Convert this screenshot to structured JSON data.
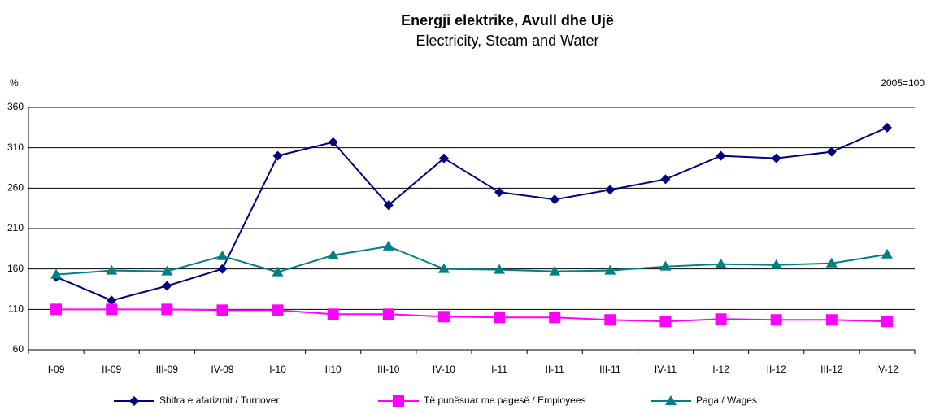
{
  "chart_data": {
    "type": "line",
    "title": "Energji elektrike, Avull dhe Ujë",
    "subtitle": "Electricity, Steam and Water",
    "y_label": "%",
    "note": "2005=100",
    "categories": [
      "I-09",
      "II-09",
      "III-09",
      "IV-09",
      "I-10",
      "II10",
      "III-10",
      "IV-10",
      "I-11",
      "II-11",
      "III-11",
      "IV-11",
      "I-12",
      "II-12",
      "III-12",
      "IV-12"
    ],
    "series": [
      {
        "name": "Shifra e afarizmit / Turnover",
        "color": "#000080",
        "marker": "diamond",
        "values": [
          150,
          121,
          139,
          160,
          300,
          317,
          239,
          297,
          255,
          246,
          258,
          271,
          300,
          297,
          305,
          335
        ]
      },
      {
        "name": "Të punësuar me pagesë / Employees",
        "color": "#ff00ff",
        "marker": "square",
        "values": [
          110,
          110,
          110,
          109,
          109,
          104,
          104,
          101,
          100,
          100,
          97,
          95,
          98,
          97,
          97,
          95
        ]
      },
      {
        "name": "Paga / Wages",
        "color": "#008080",
        "marker": "triangle",
        "values": [
          153,
          158,
          157,
          176,
          156,
          177,
          188,
          160,
          159,
          157,
          158,
          163,
          166,
          165,
          167,
          178
        ]
      }
    ],
    "ylim": [
      60,
      360
    ],
    "yticks": [
      60,
      110,
      160,
      210,
      260,
      310,
      360
    ],
    "grid": true
  }
}
